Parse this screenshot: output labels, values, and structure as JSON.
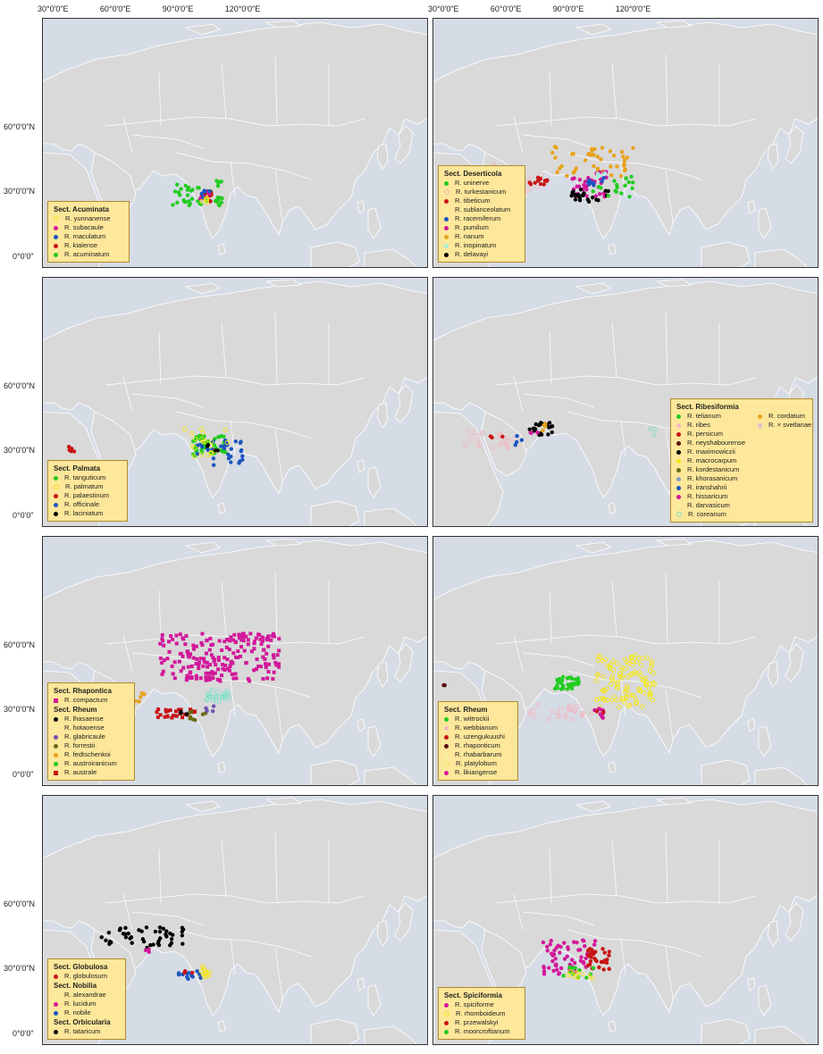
{
  "axes": {
    "lon_labels": [
      "30°0'0\"E",
      "60°0'0\"E",
      "90°0'0\"E",
      "120°0'0\"E"
    ],
    "lon_values": [
      30,
      60,
      90,
      120
    ],
    "lat_labels": [
      "60°0'0\"N",
      "30°0'0\"N",
      "0°0'0\""
    ],
    "lat_values": [
      60,
      30,
      0
    ]
  },
  "colors": {
    "ocean": "#d6dce6",
    "land": "#d9d9d9",
    "legend_bg": "#fde79a"
  },
  "panels": [
    {
      "id": "acuminata",
      "legend": [
        {
          "section": "Sect. Acuminata"
        },
        {
          "label": "R. yunnanense",
          "color": "#f5e616",
          "shape": "ring"
        },
        {
          "label": "R. subacaule",
          "color": "#d2189a",
          "shape": "dot"
        },
        {
          "label": "R. maculatum",
          "color": "#1a55c0",
          "shape": "dot"
        },
        {
          "label": "R. kialense",
          "color": "#c81414",
          "shape": "dot"
        },
        {
          "label": "R. acuminatum",
          "color": "#22cc22",
          "shape": "dot"
        }
      ]
    },
    {
      "id": "deserticola",
      "legend": [
        {
          "section": "Sect. Deserticola"
        },
        {
          "label": "R. uninerve",
          "color": "#22cc22",
          "shape": "dot"
        },
        {
          "label": "R. turkestanicum",
          "color": "#f2b8c0",
          "shape": "ring"
        },
        {
          "label": "R. tibeticum",
          "color": "#c81414",
          "shape": "dot"
        },
        {
          "label": "R. sublanceolatum",
          "color": "#f6eea0",
          "shape": "dot"
        },
        {
          "label": "R. racemiferum",
          "color": "#1a55c0",
          "shape": "dot"
        },
        {
          "label": "R. pumilum",
          "color": "#d2189a",
          "shape": "dot"
        },
        {
          "label": "R. nanum",
          "color": "#e8a21a",
          "shape": "dot"
        },
        {
          "label": "R. inopinatum",
          "color": "#a8f0d8",
          "shape": "dot"
        },
        {
          "label": "R. delavayi",
          "color": "#000000",
          "shape": "dot"
        }
      ]
    },
    {
      "id": "palmata",
      "legend": [
        {
          "section": "Sect. Palmata"
        },
        {
          "label": "R. tanguticum",
          "color": "#22cc22",
          "shape": "dot"
        },
        {
          "label": "R. palmatum",
          "color": "#f5e616",
          "shape": "ring"
        },
        {
          "label": "R. palaestinum",
          "color": "#c81414",
          "shape": "dot"
        },
        {
          "label": "R. officinale",
          "color": "#1a55c0",
          "shape": "dot"
        },
        {
          "label": "R. laciniatum",
          "color": "#000000",
          "shape": "dot"
        }
      ]
    },
    {
      "id": "ribesiformia",
      "legend_cols": 2,
      "legend": [
        {
          "section": "Sect. Ribesiformia"
        },
        {
          "label": "R. telianum",
          "color": "#22cc22",
          "shape": "dot"
        },
        {
          "label": "R. ribes",
          "color": "#f2b8c0",
          "shape": "dot"
        },
        {
          "label": "R. persicum",
          "color": "#c81414",
          "shape": "dot"
        },
        {
          "label": "R. neyshabourense",
          "color": "#5a1010",
          "shape": "dot"
        },
        {
          "label": "R. maximowiczii",
          "color": "#000000",
          "shape": "dot"
        },
        {
          "label": "R. macrocarpum",
          "color": "#f5e616",
          "shape": "dot"
        },
        {
          "label": "R. kordestanicum",
          "color": "#6b6b10",
          "shape": "dot"
        },
        {
          "label": "R. khorasanicum",
          "color": "#8aa0c0",
          "shape": "dot"
        },
        {
          "label": "R. iranshahrii",
          "color": "#1a55c0",
          "shape": "dot"
        },
        {
          "label": "R. hissaricum",
          "color": "#d2189a",
          "shape": "dot"
        },
        {
          "label": "R. darvasicum",
          "color": "#f6eea0",
          "shape": "dot"
        },
        {
          "label": "R. coreanum",
          "color": "#7fe0c8",
          "shape": "ring"
        },
        {
          "label": "R. cordatum",
          "color": "#e8a21a",
          "shape": "dot"
        },
        {
          "label": "R. × svetlanae",
          "color": "#d8c0d8",
          "shape": "dot"
        }
      ]
    },
    {
      "id": "rhapontica",
      "legend": [
        {
          "section": "Sect. Rhapontica"
        },
        {
          "label": "R. compactum",
          "color": "#d2189a",
          "shape": "sq"
        },
        {
          "section": "Sect. Rheum"
        },
        {
          "label": "R. lhasaense",
          "color": "#000000",
          "shape": "dot"
        },
        {
          "label": "R. hotaoense",
          "color": "#f6eea0",
          "shape": "dot"
        },
        {
          "label": "R. glabricaule",
          "color": "#7050b0",
          "shape": "dot"
        },
        {
          "label": "R. forrestii",
          "color": "#6b6b10",
          "shape": "dot"
        },
        {
          "label": "R. fedtschenkoi",
          "color": "#e8a21a",
          "shape": "dot"
        },
        {
          "label": "R. austroiranicum",
          "color": "#22cc22",
          "shape": "dot"
        },
        {
          "label": "R. australe",
          "color": "#c81414",
          "shape": "sq"
        }
      ]
    },
    {
      "id": "rheum",
      "legend": [
        {
          "section": "Sect. Rheum"
        },
        {
          "label": "R. wittrockii",
          "color": "#22cc22",
          "shape": "dot"
        },
        {
          "label": "R. webbianum",
          "color": "#f2b8c0",
          "shape": "dot"
        },
        {
          "label": "R. uzengukuushi",
          "color": "#c81414",
          "shape": "dot"
        },
        {
          "label": "R. rhaponticum",
          "color": "#5a1010",
          "shape": "dot"
        },
        {
          "label": "R. rhabarbarum",
          "color": "#f6eea0",
          "shape": "dot"
        },
        {
          "label": "R. platylobum",
          "color": "#e8f060",
          "shape": "ring"
        },
        {
          "label": "R. likiangense",
          "color": "#d2189a",
          "shape": "dot"
        }
      ]
    },
    {
      "id": "globulosa",
      "legend": [
        {
          "section": "Sect. Globulosa"
        },
        {
          "label": "R. globulosum",
          "color": "#c81414",
          "shape": "dot"
        },
        {
          "section": "Sect. Nobilia"
        },
        {
          "label": "R. alexandrae",
          "color": "#f6eea0",
          "shape": "dot"
        },
        {
          "label": "R. lucidum",
          "color": "#d2189a",
          "shape": "dot"
        },
        {
          "label": "R. nobile",
          "color": "#1a55c0",
          "shape": "dot"
        },
        {
          "section": "Sect. Orbicularia"
        },
        {
          "label": "R. tataricum",
          "color": "#000000",
          "shape": "dot"
        }
      ]
    },
    {
      "id": "spiciformia",
      "legend": [
        {
          "section": "Sect. Spiciformia"
        },
        {
          "label": "R. spiciforme",
          "color": "#d2189a",
          "shape": "dot"
        },
        {
          "label": "R. rhomboideum",
          "color": "#f5e616",
          "shape": "ring"
        },
        {
          "label": "R. przewalskyi",
          "color": "#c81414",
          "shape": "dot"
        },
        {
          "label": "R. moorcroftianum",
          "color": "#22cc22",
          "shape": "dot"
        }
      ]
    }
  ]
}
